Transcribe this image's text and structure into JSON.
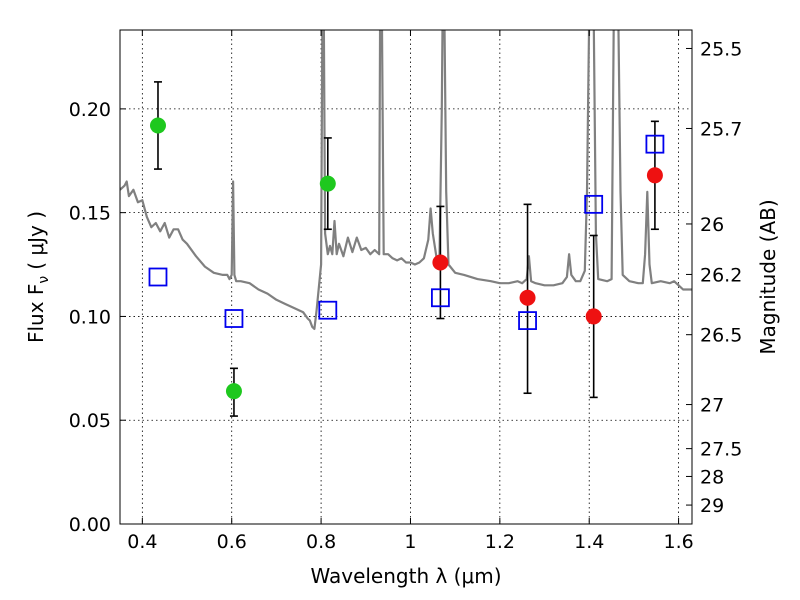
{
  "chart_data": {
    "type": "scatter",
    "xlabel": "Wavelength  λ (μm)",
    "ylabel": "Flux  F",
    "ylabel_sub": "ν",
    "ylabel_unit": "( μJy )",
    "y2label": "Magnitude (AB)",
    "xlim": [
      0.35,
      1.63
    ],
    "ylim": [
      0.0,
      0.238
    ],
    "grid": true,
    "x_ticks": [
      {
        "v": 0.4,
        "label": "0.4"
      },
      {
        "v": 0.6,
        "label": "0.6"
      },
      {
        "v": 0.8,
        "label": "0.8"
      },
      {
        "v": 1.0,
        "label": "1"
      },
      {
        "v": 1.2,
        "label": "1.2"
      },
      {
        "v": 1.4,
        "label": "1.4"
      },
      {
        "v": 1.6,
        "label": "1.6"
      }
    ],
    "y_ticks": [
      {
        "v": 0.0,
        "label": "0.00"
      },
      {
        "v": 0.05,
        "label": "0.05"
      },
      {
        "v": 0.1,
        "label": "0.10"
      },
      {
        "v": 0.15,
        "label": "0.15"
      },
      {
        "v": 0.2,
        "label": "0.20"
      }
    ],
    "mag_ticks": [
      {
        "v": 25.5,
        "label": "25.5"
      },
      {
        "v": 25.7,
        "label": "25.7"
      },
      {
        "v": 26.0,
        "label": "26"
      },
      {
        "v": 26.2,
        "label": "26.2"
      },
      {
        "v": 26.5,
        "label": "26.5"
      },
      {
        "v": 27.0,
        "label": "27"
      },
      {
        "v": 27.5,
        "label": "27.5"
      },
      {
        "v": 28.0,
        "label": "28"
      },
      {
        "v": 29.0,
        "label": "29"
      }
    ],
    "series": [
      {
        "kind": "line",
        "color": "#808080",
        "points": [
          [
            0.35,
            0.161
          ],
          [
            0.36,
            0.163
          ],
          [
            0.365,
            0.165
          ],
          [
            0.37,
            0.158
          ],
          [
            0.38,
            0.161
          ],
          [
            0.39,
            0.155
          ],
          [
            0.4,
            0.156
          ],
          [
            0.41,
            0.148
          ],
          [
            0.42,
            0.143
          ],
          [
            0.43,
            0.145
          ],
          [
            0.44,
            0.141
          ],
          [
            0.45,
            0.145
          ],
          [
            0.46,
            0.138
          ],
          [
            0.47,
            0.142
          ],
          [
            0.48,
            0.142
          ],
          [
            0.49,
            0.137
          ],
          [
            0.5,
            0.135
          ],
          [
            0.52,
            0.129
          ],
          [
            0.54,
            0.124
          ],
          [
            0.56,
            0.121
          ],
          [
            0.58,
            0.12
          ],
          [
            0.59,
            0.12
          ],
          [
            0.595,
            0.118
          ],
          [
            0.6,
            0.12
          ],
          [
            0.603,
            0.165
          ],
          [
            0.606,
            0.12
          ],
          [
            0.61,
            0.117
          ],
          [
            0.62,
            0.117
          ],
          [
            0.64,
            0.116
          ],
          [
            0.66,
            0.113
          ],
          [
            0.68,
            0.111
          ],
          [
            0.7,
            0.108
          ],
          [
            0.72,
            0.106
          ],
          [
            0.74,
            0.104
          ],
          [
            0.76,
            0.102
          ],
          [
            0.77,
            0.099
          ],
          [
            0.775,
            0.098
          ],
          [
            0.78,
            0.095
          ],
          [
            0.785,
            0.094
          ],
          [
            0.79,
            0.103
          ],
          [
            0.8,
            0.125
          ],
          [
            0.803,
            0.245
          ],
          [
            0.806,
            0.245
          ],
          [
            0.809,
            0.14
          ],
          [
            0.815,
            0.13
          ],
          [
            0.82,
            0.134
          ],
          [
            0.825,
            0.13
          ],
          [
            0.83,
            0.146
          ],
          [
            0.835,
            0.13
          ],
          [
            0.84,
            0.135
          ],
          [
            0.85,
            0.129
          ],
          [
            0.86,
            0.138
          ],
          [
            0.87,
            0.131
          ],
          [
            0.88,
            0.138
          ],
          [
            0.89,
            0.132
          ],
          [
            0.9,
            0.133
          ],
          [
            0.91,
            0.13
          ],
          [
            0.92,
            0.132
          ],
          [
            0.93,
            0.13
          ],
          [
            0.932,
            0.245
          ],
          [
            0.936,
            0.245
          ],
          [
            0.94,
            0.13
          ],
          [
            0.95,
            0.13
          ],
          [
            0.96,
            0.128
          ],
          [
            0.97,
            0.127
          ],
          [
            0.98,
            0.128
          ],
          [
            0.99,
            0.126
          ],
          [
            1.0,
            0.126
          ],
          [
            1.01,
            0.125
          ],
          [
            1.02,
            0.126
          ],
          [
            1.03,
            0.128
          ],
          [
            1.04,
            0.137
          ],
          [
            1.045,
            0.152
          ],
          [
            1.05,
            0.14
          ],
          [
            1.06,
            0.126
          ],
          [
            1.065,
            0.129
          ],
          [
            1.07,
            0.2
          ],
          [
            1.072,
            0.245
          ],
          [
            1.076,
            0.245
          ],
          [
            1.08,
            0.16
          ],
          [
            1.085,
            0.125
          ],
          [
            1.1,
            0.121
          ],
          [
            1.12,
            0.12
          ],
          [
            1.15,
            0.118
          ],
          [
            1.18,
            0.117
          ],
          [
            1.2,
            0.116
          ],
          [
            1.22,
            0.116
          ],
          [
            1.24,
            0.117
          ],
          [
            1.25,
            0.116
          ],
          [
            1.26,
            0.118
          ],
          [
            1.265,
            0.129
          ],
          [
            1.27,
            0.117
          ],
          [
            1.28,
            0.116
          ],
          [
            1.3,
            0.115
          ],
          [
            1.32,
            0.115
          ],
          [
            1.34,
            0.116
          ],
          [
            1.35,
            0.119
          ],
          [
            1.355,
            0.13
          ],
          [
            1.36,
            0.12
          ],
          [
            1.37,
            0.117
          ],
          [
            1.38,
            0.117
          ],
          [
            1.39,
            0.122
          ],
          [
            1.395,
            0.16
          ],
          [
            1.4,
            0.245
          ],
          [
            1.41,
            0.245
          ],
          [
            1.415,
            0.14
          ],
          [
            1.42,
            0.118
          ],
          [
            1.44,
            0.117
          ],
          [
            1.45,
            0.118
          ],
          [
            1.455,
            0.245
          ],
          [
            1.465,
            0.245
          ],
          [
            1.47,
            0.16
          ],
          [
            1.475,
            0.12
          ],
          [
            1.49,
            0.117
          ],
          [
            1.51,
            0.116
          ],
          [
            1.52,
            0.116
          ],
          [
            1.525,
            0.13
          ],
          [
            1.53,
            0.16
          ],
          [
            1.535,
            0.125
          ],
          [
            1.54,
            0.116
          ],
          [
            1.56,
            0.117
          ],
          [
            1.58,
            0.116
          ],
          [
            1.59,
            0.117
          ],
          [
            1.6,
            0.115
          ],
          [
            1.61,
            0.113
          ],
          [
            1.63,
            0.113
          ]
        ]
      },
      {
        "kind": "points",
        "marker": "circle",
        "color": "#1ec81e",
        "points": [
          {
            "x": 0.435,
            "y": 0.192,
            "lo": 0.171,
            "hi": 0.213
          },
          {
            "x": 0.605,
            "y": 0.064,
            "lo": 0.052,
            "hi": 0.075
          },
          {
            "x": 0.815,
            "y": 0.164,
            "lo": 0.142,
            "hi": 0.186
          }
        ]
      },
      {
        "kind": "points",
        "marker": "circle",
        "color": "#ee1111",
        "points": [
          {
            "x": 1.067,
            "y": 0.126,
            "lo": 0.099,
            "hi": 0.153
          },
          {
            "x": 1.262,
            "y": 0.109,
            "lo": 0.063,
            "hi": 0.154
          },
          {
            "x": 1.41,
            "y": 0.1,
            "lo": 0.061,
            "hi": 0.139
          },
          {
            "x": 1.547,
            "y": 0.168,
            "lo": 0.142,
            "hi": 0.194
          }
        ]
      },
      {
        "kind": "points",
        "marker": "open-square",
        "color": "#0000ee",
        "points": [
          {
            "x": 0.435,
            "y": 0.119
          },
          {
            "x": 0.605,
            "y": 0.099
          },
          {
            "x": 0.815,
            "y": 0.103
          },
          {
            "x": 1.067,
            "y": 0.109
          },
          {
            "x": 1.262,
            "y": 0.098
          },
          {
            "x": 1.41,
            "y": 0.154
          },
          {
            "x": 1.547,
            "y": 0.183
          }
        ]
      }
    ]
  }
}
